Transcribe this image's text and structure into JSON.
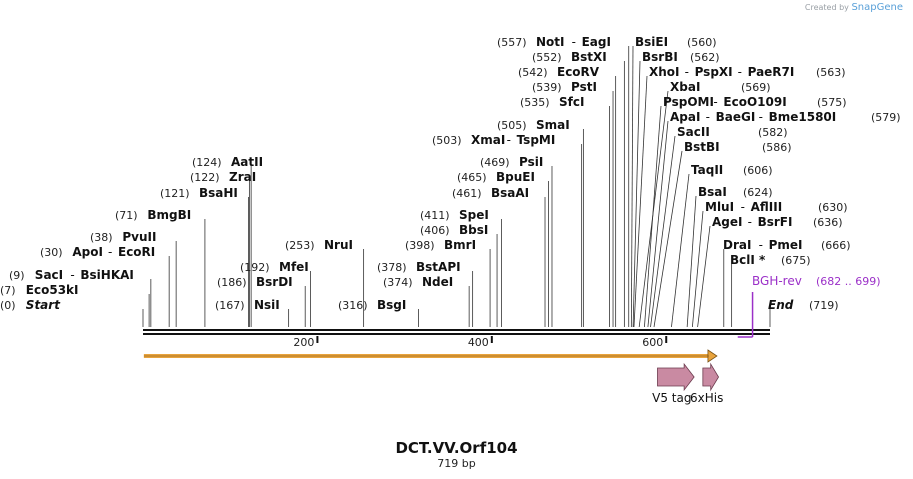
{
  "credit": {
    "prefix": "Created by",
    "brand": "SnapGene"
  },
  "title": "DCT.VV.Orf104",
  "length_label": "719 bp",
  "length": 719,
  "ticks": [
    {
      "label": "200",
      "value": 200
    },
    {
      "label": "400",
      "value": 400
    },
    {
      "label": "600",
      "value": 600
    }
  ],
  "colors": {
    "backbone": "#111111",
    "orf": "#e8a33d",
    "feature": "#c98aa2",
    "primer": "#9b30c8",
    "text": "#111111"
  },
  "sites": [
    {
      "pos": "(0)",
      "names": [
        "Start"
      ],
      "italic": true,
      "bp": 0
    },
    {
      "pos": "(7)",
      "names": [
        "Eco53kI"
      ],
      "bp": 7
    },
    {
      "pos": "(9)",
      "names": [
        "SacI",
        "BsiHKAI"
      ],
      "bp": 9
    },
    {
      "pos": "(30)",
      "names": [
        "ApoI",
        "EcoRI"
      ],
      "bp": 30
    },
    {
      "pos": "(38)",
      "names": [
        "PvuII"
      ],
      "bp": 38
    },
    {
      "pos": "(71)",
      "names": [
        "BmgBI"
      ],
      "bp": 71
    },
    {
      "pos": "(121)",
      "names": [
        "BsaHI"
      ],
      "bp": 121
    },
    {
      "pos": "(122)",
      "names": [
        "ZraI"
      ],
      "bp": 122
    },
    {
      "pos": "(124)",
      "names": [
        "AatII"
      ],
      "bp": 124
    },
    {
      "pos": "(167)",
      "names": [
        "NsiI"
      ],
      "bp": 167
    },
    {
      "pos": "(186)",
      "names": [
        "BsrDI"
      ],
      "bp": 186
    },
    {
      "pos": "(192)",
      "names": [
        "MfeI"
      ],
      "bp": 192
    },
    {
      "pos": "(253)",
      "names": [
        "NruI"
      ],
      "bp": 253
    },
    {
      "pos": "(316)",
      "names": [
        "BsgI"
      ],
      "bp": 316
    },
    {
      "pos": "(374)",
      "names": [
        "NdeI"
      ],
      "bp": 374
    },
    {
      "pos": "(378)",
      "names": [
        "BstAPI"
      ],
      "bp": 378
    },
    {
      "pos": "(398)",
      "names": [
        "BmrI"
      ],
      "bp": 398
    },
    {
      "pos": "(406)",
      "names": [
        "BbsI"
      ],
      "bp": 406
    },
    {
      "pos": "(411)",
      "names": [
        "SpeI"
      ],
      "bp": 411
    },
    {
      "pos": "(461)",
      "names": [
        "BsaAI"
      ],
      "bp": 461
    },
    {
      "pos": "(465)",
      "names": [
        "BpuEI"
      ],
      "bp": 465
    },
    {
      "pos": "(469)",
      "names": [
        "PsiI"
      ],
      "bp": 469
    },
    {
      "pos": "(503)",
      "names": [
        "XmaI",
        "TspMI"
      ],
      "bp": 503
    },
    {
      "pos": "(505)",
      "names": [
        "SmaI"
      ],
      "bp": 505
    },
    {
      "pos": "(535)",
      "names": [
        "SfcI"
      ],
      "bp": 535
    },
    {
      "pos": "(539)",
      "names": [
        "PstI"
      ],
      "bp": 539
    },
    {
      "pos": "(542)",
      "names": [
        "EcoRV"
      ],
      "bp": 542
    },
    {
      "pos": "(552)",
      "names": [
        "BstXI"
      ],
      "bp": 552
    },
    {
      "pos": "(557)",
      "names": [
        "NotI",
        "EagI"
      ],
      "bp": 557
    },
    {
      "pos": "(560)",
      "names": [
        "BsiEI"
      ],
      "bp": 560,
      "pos_right": true
    },
    {
      "pos": "(562)",
      "names": [
        "BsrBI"
      ],
      "bp": 562,
      "pos_right": true
    },
    {
      "pos": "(563)",
      "names": [
        "XhoI",
        "PspXI",
        "PaeR7I"
      ],
      "bp": 563,
      "pos_right": true
    },
    {
      "pos": "(569)",
      "names": [
        "XbaI"
      ],
      "bp": 569,
      "pos_right": true
    },
    {
      "pos": "(575)",
      "names": [
        "PspOMI",
        "EcoO109I"
      ],
      "bp": 575,
      "pos_right": true
    },
    {
      "pos": "(579)",
      "names": [
        "ApaI",
        "BaeGI",
        "Bme1580I"
      ],
      "bp": 579,
      "pos_right": true
    },
    {
      "pos": "(582)",
      "names": [
        "SacII"
      ],
      "bp": 582,
      "pos_right": true
    },
    {
      "pos": "(586)",
      "names": [
        "BstBI"
      ],
      "bp": 586,
      "pos_right": true
    },
    {
      "pos": "(606)",
      "names": [
        "TaqII"
      ],
      "bp": 606,
      "pos_right": true
    },
    {
      "pos": "(624)",
      "names": [
        "BsaI"
      ],
      "bp": 624,
      "pos_right": true
    },
    {
      "pos": "(630)",
      "names": [
        "MluI",
        "AflIII"
      ],
      "bp": 630,
      "pos_right": true
    },
    {
      "pos": "(636)",
      "names": [
        "AgeI",
        "BsrFI"
      ],
      "bp": 636,
      "pos_right": true
    },
    {
      "pos": "(666)",
      "names": [
        "DraI",
        "PmeI"
      ],
      "bp": 666,
      "pos_right": true
    },
    {
      "pos": "(675)",
      "names": [
        "BclI *"
      ],
      "bp": 675,
      "pos_right": true
    },
    {
      "pos": "(719)",
      "names": [
        "End"
      ],
      "italic": true,
      "bp": 719,
      "pos_right": true
    }
  ],
  "primer": {
    "name": "BGH-rev",
    "range": "(682 .. 699)",
    "start": 682,
    "end": 699
  },
  "features": [
    {
      "name": "V5 tag",
      "start": 590,
      "end": 632
    },
    {
      "name": "6xHis",
      "start": 642,
      "end": 660
    }
  ],
  "orf": {
    "start": 1,
    "end": 657
  }
}
